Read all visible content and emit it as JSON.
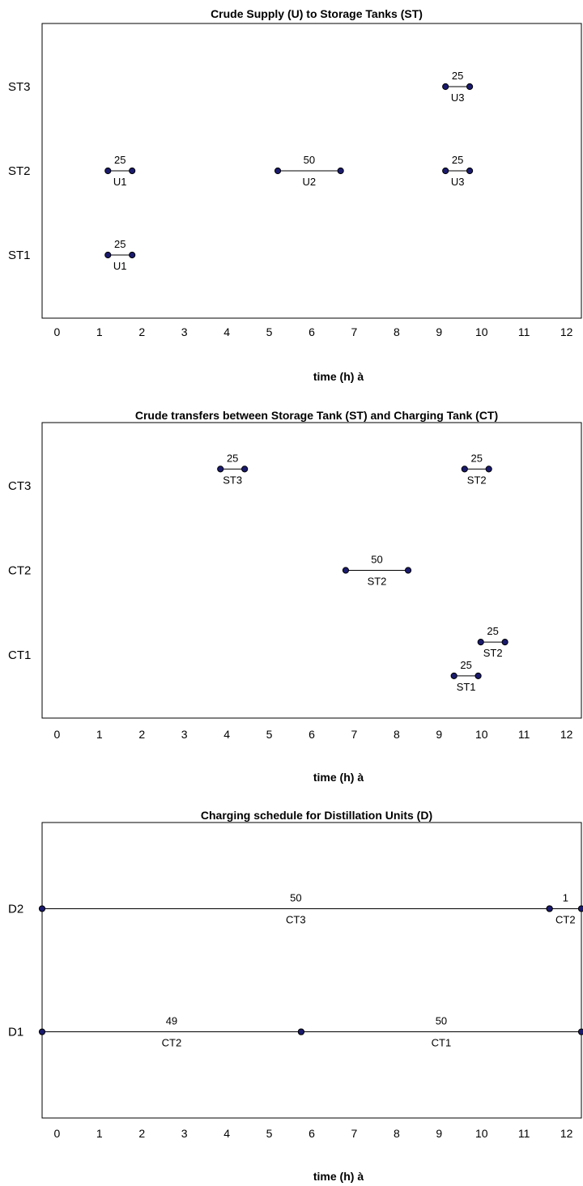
{
  "chart_data": [
    {
      "type": "gantt",
      "title": "Crude Supply (U) to Storage Tanks (ST)",
      "xlabel": "time (h) à",
      "categories": [
        "ST1",
        "ST2",
        "ST3"
      ],
      "xticks": [
        "0",
        "1",
        "2",
        "3",
        "4",
        "5",
        "6",
        "7",
        "8",
        "9",
        "10",
        "11",
        "12"
      ],
      "xlim": [
        -0.35,
        12.35
      ],
      "ylim": [
        0.25,
        3.75
      ],
      "grid": false,
      "segments": [
        {
          "row": "ST3",
          "x_start": 9.15,
          "x_end": 9.72,
          "value": "25",
          "source": "U3"
        },
        {
          "row": "ST2",
          "x_start": 1.2,
          "x_end": 1.77,
          "value": "25",
          "source": "U1"
        },
        {
          "row": "ST2",
          "x_start": 5.2,
          "x_end": 6.68,
          "value": "50",
          "source": "U2"
        },
        {
          "row": "ST2",
          "x_start": 9.15,
          "x_end": 9.72,
          "value": "25",
          "source": "U3"
        },
        {
          "row": "ST1",
          "x_start": 1.2,
          "x_end": 1.77,
          "value": "25",
          "source": "U1"
        }
      ]
    },
    {
      "type": "gantt",
      "title": "Crude transfers between Storage Tank (ST) and Charging Tank (CT)",
      "xlabel": "time (h) à",
      "categories": [
        "CT1",
        "CT2",
        "CT3"
      ],
      "xticks": [
        "0",
        "1",
        "2",
        "3",
        "4",
        "5",
        "6",
        "7",
        "8",
        "9",
        "10",
        "11",
        "12"
      ],
      "xlim": [
        -0.35,
        12.35
      ],
      "ylim": [
        0.25,
        3.75
      ],
      "grid": false,
      "segments": [
        {
          "row": "CT3",
          "y": 3.2,
          "x_start": 3.85,
          "x_end": 4.42,
          "value": "25",
          "source": "ST3"
        },
        {
          "row": "CT3",
          "y": 3.2,
          "x_start": 9.6,
          "x_end": 10.17,
          "value": "25",
          "source": "ST2"
        },
        {
          "row": "CT2",
          "y": 2.0,
          "x_start": 6.8,
          "x_end": 8.27,
          "value": "50",
          "source": "ST2"
        },
        {
          "row": "CT1",
          "y": 1.15,
          "x_start": 9.98,
          "x_end": 10.55,
          "value": "25",
          "source": "ST2"
        },
        {
          "row": "CT1",
          "y": 0.75,
          "x_start": 9.35,
          "x_end": 9.92,
          "value": "25",
          "source": "ST1"
        }
      ]
    },
    {
      "type": "gantt",
      "title": "Charging schedule for Distillation Units (D)",
      "xlabel": "time (h) à",
      "categories": [
        "D1",
        "D2"
      ],
      "xticks": [
        "0",
        "1",
        "2",
        "3",
        "4",
        "5",
        "6",
        "7",
        "8",
        "9",
        "10",
        "11",
        "12"
      ],
      "xlim": [
        -0.35,
        12.35
      ],
      "ylim": [
        0.3,
        2.7
      ],
      "grid": false,
      "segments": [
        {
          "row": "D2",
          "x_start": -0.35,
          "x_end": 11.6,
          "value": "50",
          "source": "CT3"
        },
        {
          "row": "D2",
          "x_start": 11.6,
          "x_end": 12.35,
          "value": "1",
          "source": "CT2"
        },
        {
          "row": "D1",
          "x_start": -0.35,
          "x_end": 5.75,
          "value": "49",
          "source": "CT2"
        },
        {
          "row": "D1",
          "x_start": 5.75,
          "x_end": 12.35,
          "value": "50",
          "source": "CT1"
        }
      ]
    }
  ]
}
